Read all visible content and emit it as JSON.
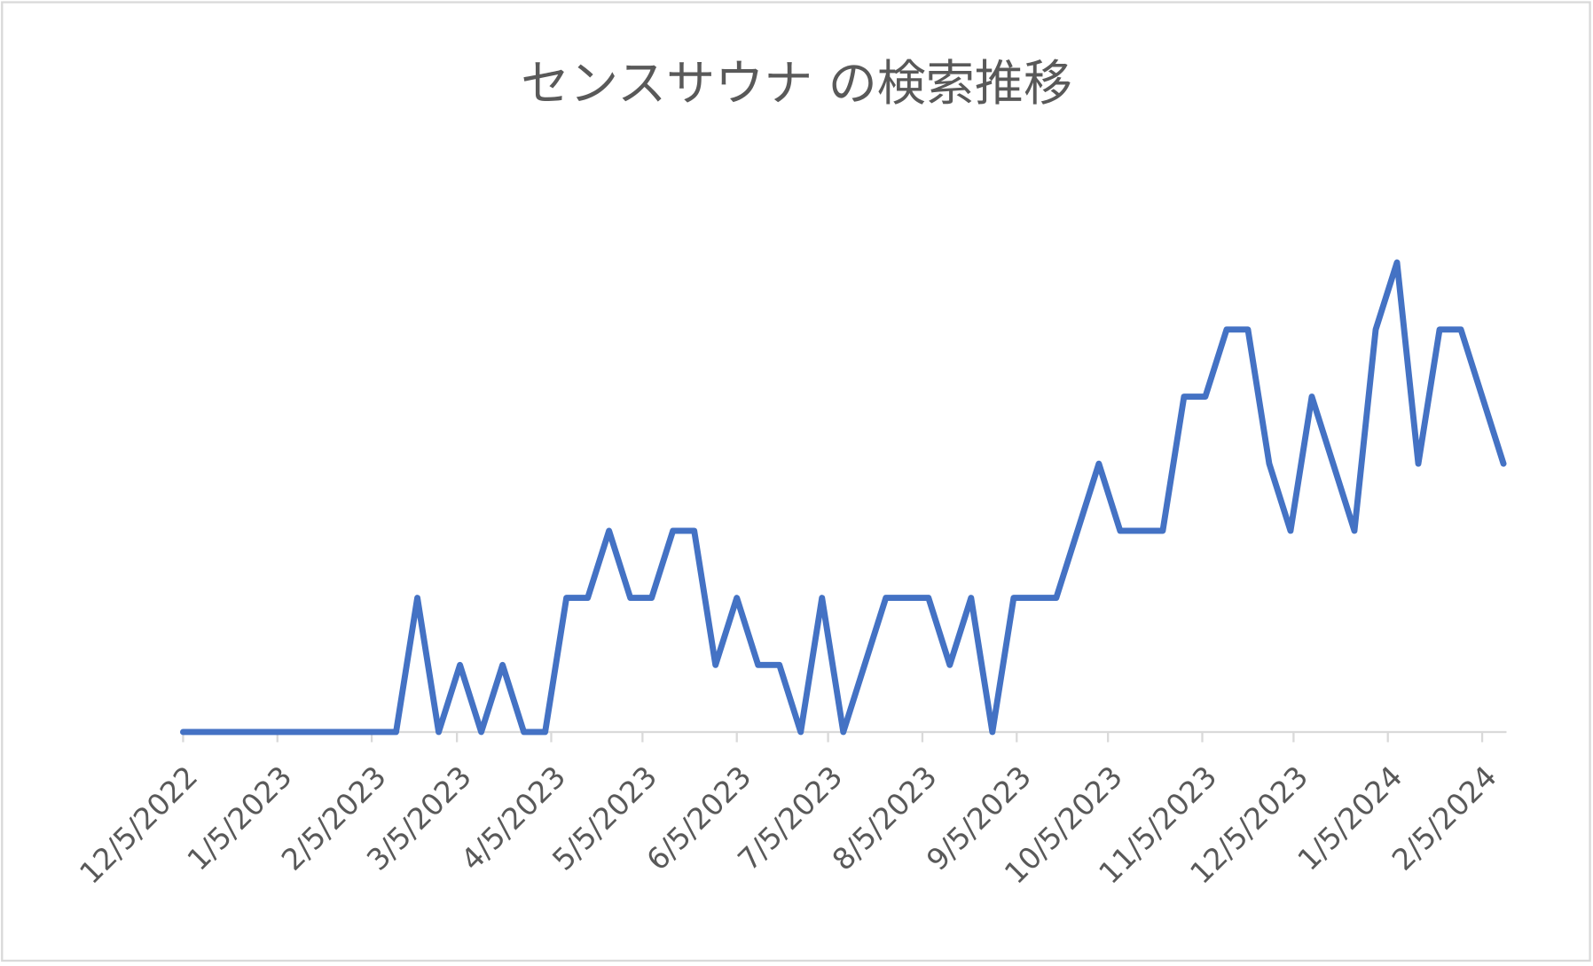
{
  "chart_data": {
    "type": "line",
    "title": "センスサウナ の検索推移",
    "x": [
      "12/5/2022",
      "12/12/2022",
      "12/19/2022",
      "12/26/2022",
      "1/2/2023",
      "1/9/2023",
      "1/16/2023",
      "1/23/2023",
      "1/30/2023",
      "2/6/2023",
      "2/13/2023",
      "2/20/2023",
      "2/27/2023",
      "3/6/2023",
      "3/13/2023",
      "3/20/2023",
      "3/27/2023",
      "4/3/2023",
      "4/10/2023",
      "4/17/2023",
      "4/24/2023",
      "5/1/2023",
      "5/8/2023",
      "5/15/2023",
      "5/22/2023",
      "5/29/2023",
      "6/5/2023",
      "6/12/2023",
      "6/19/2023",
      "6/26/2023",
      "7/3/2023",
      "7/10/2023",
      "7/17/2023",
      "7/24/2023",
      "7/31/2023",
      "8/7/2023",
      "8/14/2023",
      "8/21/2023",
      "8/28/2023",
      "9/4/2023",
      "9/11/2023",
      "9/18/2023",
      "9/25/2023",
      "10/2/2023",
      "10/9/2023",
      "10/16/2023",
      "10/23/2023",
      "10/30/2023",
      "11/6/2023",
      "11/13/2023",
      "11/20/2023",
      "11/27/2023",
      "12/4/2023",
      "12/11/2023",
      "12/18/2023",
      "12/25/2023",
      "1/1/2024",
      "1/8/2024",
      "1/15/2024",
      "1/22/2024",
      "1/29/2024",
      "2/5/2024",
      "2/12/2024"
    ],
    "values": [
      0,
      0,
      0,
      0,
      0,
      0,
      0,
      0,
      0,
      0,
      0,
      2,
      0,
      1,
      0,
      1,
      0,
      0,
      2,
      2,
      3,
      2,
      2,
      3,
      3,
      1,
      2,
      1,
      1,
      0,
      2,
      0,
      1,
      2,
      2,
      2,
      1,
      2,
      0,
      2,
      2,
      2,
      3,
      4,
      3,
      3,
      3,
      5,
      5,
      6,
      6,
      4,
      3,
      5,
      4,
      3,
      6,
      7,
      4,
      6,
      6,
      5,
      4
    ],
    "color": "#4472c4",
    "xlim": [
      "12/5/2022",
      "2/12/2024"
    ],
    "xticks": [
      "12/5/2022",
      "1/5/2023",
      "2/5/2023",
      "3/5/2023",
      "4/5/2023",
      "5/5/2023",
      "6/5/2023",
      "7/5/2023",
      "8/5/2023",
      "9/5/2023",
      "10/5/2023",
      "11/5/2023",
      "12/5/2023",
      "1/5/2024",
      "2/5/2024"
    ],
    "ylim": [
      0,
      8
    ]
  }
}
